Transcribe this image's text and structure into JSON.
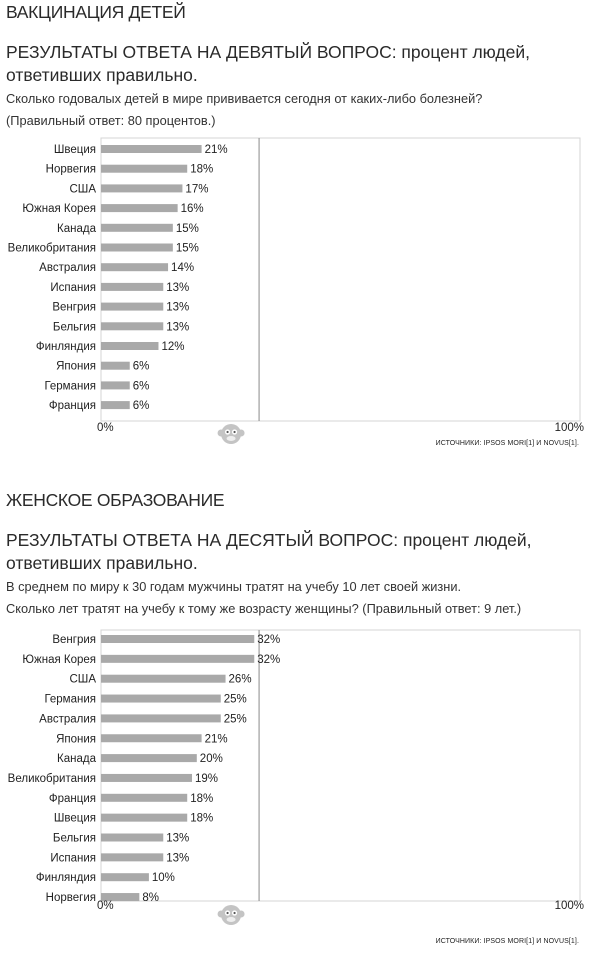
{
  "sections": [
    {
      "section_title": "ВАКЦИНАЦИЯ ДЕТЕЙ",
      "question_title": "РЕЗУЛЬТАТЫ ОТВЕТА НА ДЕВЯТЫЙ ВОПРОС: процент людей, ответивших правильно.",
      "question_lines": [
        "Сколько годовалых детей в мире прививается сегодня от каких-либо болезней?",
        "(Правильный ответ: 80 процентов.)"
      ],
      "source": "ИСТОЧНИКИ: IPSOS MORI[1] И NOVUS[1]."
    },
    {
      "section_title": "ЖЕНСКОЕ ОБРАЗОВАНИЕ",
      "question_title": "РЕЗУЛЬТАТЫ ОТВЕТА НА ДЕСЯТЫЙ ВОПРОС: процент людей, ответивших правильно.",
      "question_lines": [
        "В среднем по миру к 30 годам мужчины тратят на учебу 10 лет своей жизни.",
        "Сколько лет тратят на учебу к тому же возрасту женщины? (Правильный ответ: 9 лет.)"
      ],
      "source": "ИСТОЧНИКИ: IPSOS MORI[1] И NOVUS[1]."
    }
  ],
  "colors": {
    "bar": "#a9a9a9",
    "frame": "#d4d4d4",
    "divider": "#8a8a8a",
    "text": "#222222",
    "logo": "#c4c4c4"
  },
  "icons": {
    "logo": "monkey-icon"
  },
  "chart_data": [
    {
      "type": "bar",
      "orientation": "horizontal",
      "categories": [
        "Швеция",
        "Норвегия",
        "США",
        "Южная Корея",
        "Канада",
        "Великобритания",
        "Австралия",
        "Испания",
        "Венгрия",
        "Бельгия",
        "Финляндия",
        "Япония",
        "Германия",
        "Франция"
      ],
      "values": [
        21,
        18,
        17,
        16,
        15,
        15,
        14,
        13,
        13,
        13,
        12,
        6,
        6,
        6
      ],
      "value_labels": [
        "21%",
        "18%",
        "17%",
        "16%",
        "15%",
        "15%",
        "14%",
        "13%",
        "13%",
        "13%",
        "12%",
        "6%",
        "6%",
        "6%"
      ],
      "xlim": [
        0,
        100
      ],
      "x_tick_labels": [
        "0%",
        "100%"
      ],
      "reference_line": 33
    },
    {
      "type": "bar",
      "orientation": "horizontal",
      "categories": [
        "Венгрия",
        "Южная Корея",
        "США",
        "Германия",
        "Австралия",
        "Япония",
        "Канада",
        "Великобритания",
        "Франция",
        "Швеция",
        "Бельгия",
        "Испания",
        "Финляндия",
        "Норвегия"
      ],
      "values": [
        32,
        32,
        26,
        25,
        25,
        21,
        20,
        19,
        18,
        18,
        13,
        13,
        10,
        8
      ],
      "value_labels": [
        "32%",
        "32%",
        "26%",
        "25%",
        "25%",
        "21%",
        "20%",
        "19%",
        "18%",
        "18%",
        "13%",
        "13%",
        "10%",
        "8%"
      ],
      "xlim": [
        0,
        100
      ],
      "x_tick_labels": [
        "0%",
        "100%"
      ],
      "reference_line": 33
    }
  ]
}
